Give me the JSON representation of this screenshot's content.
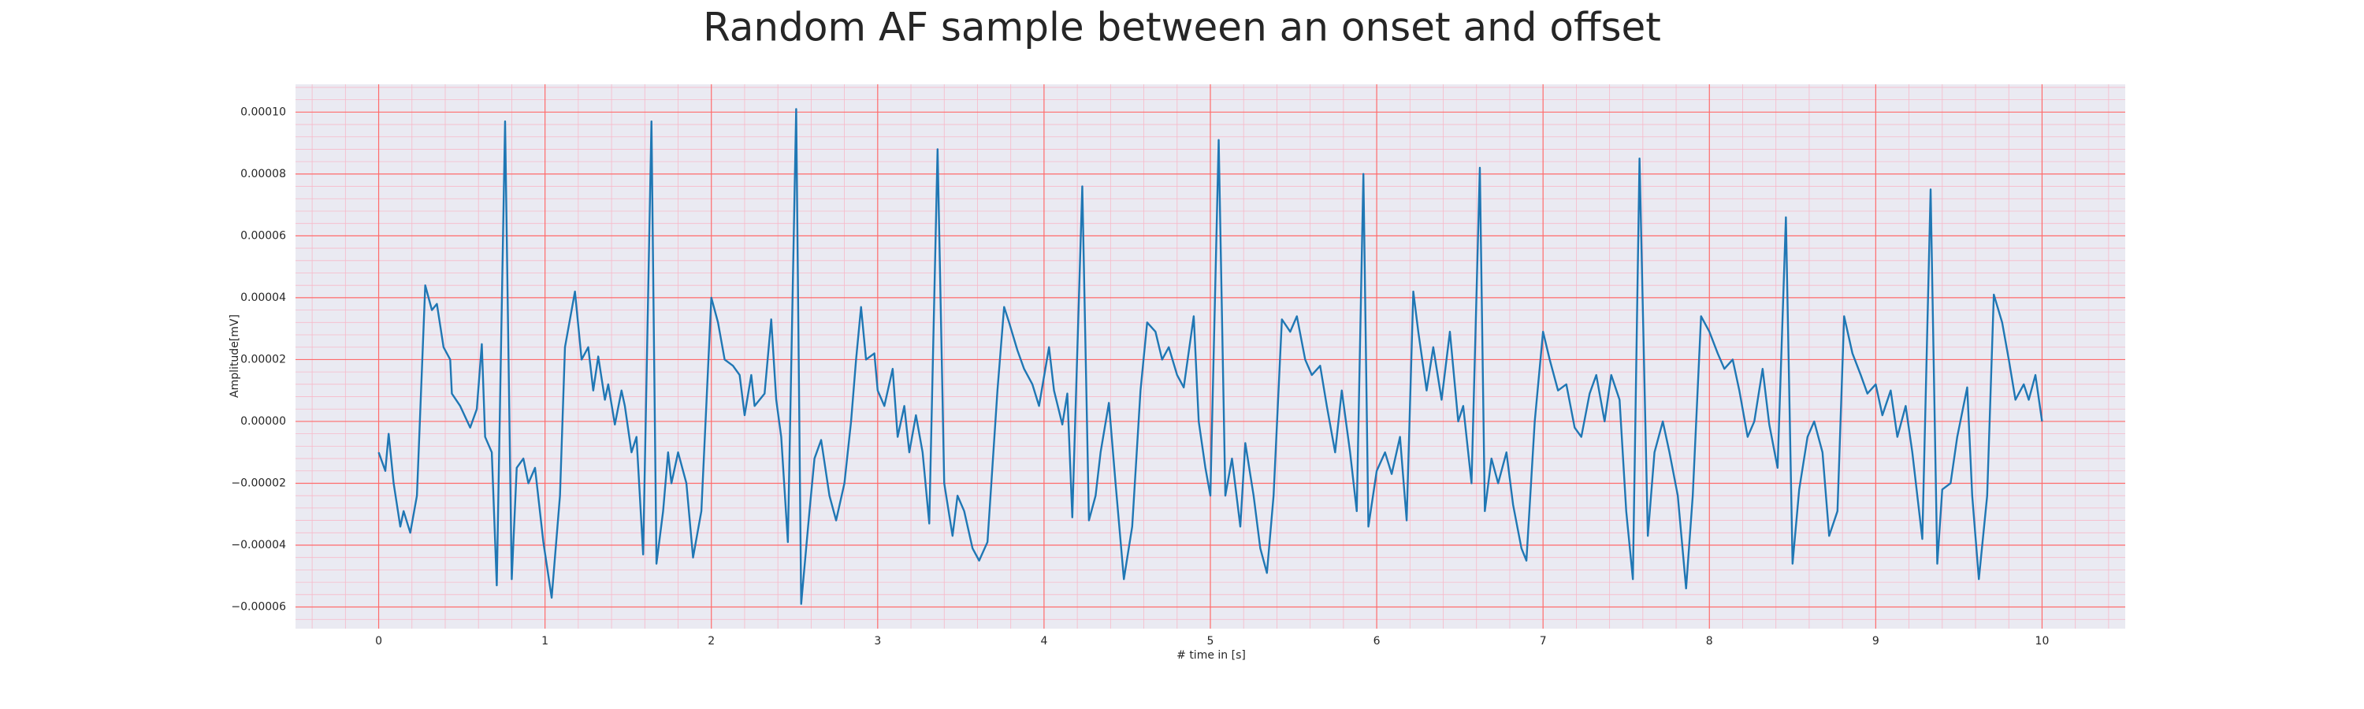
{
  "chart_data": {
    "type": "line",
    "title": "Random AF sample between an onset and offset",
    "x_label": "# time in [s]",
    "y_label": "Amplitude[mV]",
    "color": "#1f77b4",
    "background": "#eaeaf2",
    "grid": true,
    "grid_color": "#ff6b6b",
    "minor_grid_color": "#f7b9c9",
    "xlim": [
      -0.5,
      10.5
    ],
    "ylim": [
      -6.7e-05,
      0.000109
    ],
    "xticks": [
      0,
      1,
      2,
      3,
      4,
      5,
      6,
      7,
      8,
      9,
      10
    ],
    "yticks": [
      {
        "value": -6e-05,
        "label": "−0.00006"
      },
      {
        "value": -4e-05,
        "label": "−0.00004"
      },
      {
        "value": -2e-05,
        "label": "−0.00002"
      },
      {
        "value": 0,
        "label": "0.00000"
      },
      {
        "value": 2e-05,
        "label": "0.00002"
      },
      {
        "value": 4e-05,
        "label": "0.00004"
      },
      {
        "value": 6e-05,
        "label": "0.00006"
      },
      {
        "value": 8e-05,
        "label": "0.00008"
      },
      {
        "value": 0.0001,
        "label": "0.00010"
      }
    ],
    "x": [
      0,
      0.04,
      0.06,
      0.09,
      0.13,
      0.15,
      0.19,
      0.23,
      0.28,
      0.32,
      0.35,
      0.39,
      0.43,
      0.44,
      0.49,
      0.55,
      0.59,
      0.62,
      0.64,
      0.68,
      0.71,
      0.76,
      0.8,
      0.83,
      0.87,
      0.9,
      0.94,
      0.99,
      1.04,
      1.09,
      1.12,
      1.18,
      1.22,
      1.26,
      1.29,
      1.32,
      1.36,
      1.38,
      1.42,
      1.46,
      1.48,
      1.52,
      1.55,
      1.59,
      1.64,
      1.67,
      1.71,
      1.74,
      1.76,
      1.8,
      1.85,
      1.89,
      1.94,
      2.0,
      2.04,
      2.08,
      2.13,
      2.17,
      2.2,
      2.24,
      2.26,
      2.32,
      2.36,
      2.39,
      2.42,
      2.46,
      2.51,
      2.54,
      2.59,
      2.62,
      2.66,
      2.71,
      2.75,
      2.8,
      2.84,
      2.87,
      2.9,
      2.93,
      2.98,
      3.0,
      3.04,
      3.09,
      3.12,
      3.16,
      3.19,
      3.23,
      3.27,
      3.31,
      3.36,
      3.4,
      3.45,
      3.48,
      3.52,
      3.57,
      3.61,
      3.66,
      3.72,
      3.76,
      3.79,
      3.84,
      3.88,
      3.93,
      3.97,
      4.03,
      4.06,
      4.11,
      4.14,
      4.17,
      4.23,
      4.27,
      4.31,
      4.34,
      4.39,
      4.43,
      4.48,
      4.53,
      4.58,
      4.62,
      4.67,
      4.71,
      4.75,
      4.8,
      4.84,
      4.9,
      4.93,
      4.97,
      5.0,
      5.05,
      5.09,
      5.13,
      5.18,
      5.21,
      5.26,
      5.3,
      5.34,
      5.38,
      5.43,
      5.48,
      5.52,
      5.57,
      5.61,
      5.66,
      5.7,
      5.75,
      5.79,
      5.84,
      5.88,
      5.92,
      5.95,
      6.0,
      6.05,
      6.09,
      6.14,
      6.18,
      6.22,
      6.25,
      6.3,
      6.34,
      6.39,
      6.44,
      6.49,
      6.52,
      6.57,
      6.62,
      6.65,
      6.69,
      6.73,
      6.78,
      6.82,
      6.87,
      6.9,
      6.95,
      7.0,
      7.04,
      7.09,
      7.14,
      7.19,
      7.23,
      7.28,
      7.32,
      7.37,
      7.41,
      7.46,
      7.5,
      7.54,
      7.58,
      7.63,
      7.67,
      7.72,
      7.76,
      7.81,
      7.86,
      7.9,
      7.95,
      8.0,
      8.05,
      8.09,
      8.14,
      8.18,
      8.23,
      8.27,
      8.32,
      8.36,
      8.41,
      8.46,
      8.5,
      8.54,
      8.59,
      8.63,
      8.68,
      8.72,
      8.77,
      8.81,
      8.86,
      8.91,
      8.95,
      9.0,
      9.04,
      9.09,
      9.13,
      9.18,
      9.22,
      9.28,
      9.33,
      9.37,
      9.4,
      9.45,
      9.49,
      9.55,
      9.58,
      9.62,
      9.67,
      9.71,
      9.76,
      9.8,
      9.84,
      9.89,
      9.92,
      9.96,
      10
    ],
    "values": [
      -1e-05,
      -1.6e-05,
      -4e-06,
      -2e-05,
      -3.4e-05,
      -2.9e-05,
      -3.6e-05,
      -2.4e-05,
      4.4e-05,
      3.6e-05,
      3.8e-05,
      2.4e-05,
      2e-05,
      9e-06,
      5e-06,
      -2e-06,
      4e-06,
      2.5e-05,
      -5e-06,
      -1e-05,
      -5.3e-05,
      9.7e-05,
      -5.1e-05,
      -1.5e-05,
      -1.2e-05,
      -2e-05,
      -1.5e-05,
      -3.9e-05,
      -5.7e-05,
      -2.4e-05,
      2.4e-05,
      4.2e-05,
      2e-05,
      2.4e-05,
      1e-05,
      2.1e-05,
      7e-06,
      1.2e-05,
      -1e-06,
      1e-05,
      5e-06,
      -1e-05,
      -5e-06,
      -4.3e-05,
      9.7e-05,
      -4.6e-05,
      -2.9e-05,
      -1e-05,
      -2e-05,
      -1e-05,
      -2e-05,
      -4.4e-05,
      -2.9e-05,
      4e-05,
      3.2e-05,
      2e-05,
      1.8e-05,
      1.5e-05,
      2e-06,
      1.5e-05,
      5e-06,
      9e-06,
      3.3e-05,
      7e-06,
      -5e-06,
      -3.9e-05,
      0.000101,
      -5.9e-05,
      -2.9e-05,
      -1.2e-05,
      -6e-06,
      -2.4e-05,
      -3.2e-05,
      -2e-05,
      0,
      2e-05,
      3.7e-05,
      2e-05,
      2.2e-05,
      1e-05,
      5e-06,
      1.7e-05,
      -5e-06,
      5e-06,
      -1e-05,
      2e-06,
      -1e-05,
      -3.3e-05,
      8.8e-05,
      -2e-05,
      -3.7e-05,
      -2.4e-05,
      -2.9e-05,
      -4.1e-05,
      -4.5e-05,
      -3.9e-05,
      1e-05,
      3.7e-05,
      3.2e-05,
      2.3e-05,
      1.7e-05,
      1.2e-05,
      5e-06,
      2.4e-05,
      1e-05,
      -1e-06,
      9e-06,
      -3.1e-05,
      7.6e-05,
      -3.2e-05,
      -2.4e-05,
      -1e-05,
      6e-06,
      -2e-05,
      -5.1e-05,
      -3.4e-05,
      1e-05,
      3.2e-05,
      2.9e-05,
      2e-05,
      2.4e-05,
      1.5e-05,
      1.1e-05,
      3.4e-05,
      0,
      -1.5e-05,
      -2.4e-05,
      9.1e-05,
      -2.4e-05,
      -1.2e-05,
      -3.4e-05,
      -7e-06,
      -2.4e-05,
      -4.1e-05,
      -4.9e-05,
      -2.4e-05,
      3.3e-05,
      2.9e-05,
      3.4e-05,
      2e-05,
      1.5e-05,
      1.8e-05,
      5e-06,
      -1e-05,
      1e-05,
      -1e-05,
      -2.9e-05,
      8e-05,
      -3.4e-05,
      -1.6e-05,
      -1e-05,
      -1.7e-05,
      -5e-06,
      -3.2e-05,
      4.2e-05,
      2.9e-05,
      1e-05,
      2.4e-05,
      7e-06,
      2.9e-05,
      0,
      5e-06,
      -2e-05,
      8.2e-05,
      -2.9e-05,
      -1.2e-05,
      -2e-05,
      -1e-05,
      -2.7e-05,
      -4.1e-05,
      -4.5e-05,
      0,
      2.9e-05,
      2e-05,
      1e-05,
      1.2e-05,
      -2e-06,
      -5e-06,
      9e-06,
      1.5e-05,
      0,
      1.5e-05,
      7e-06,
      -2.9e-05,
      -5.1e-05,
      8.5e-05,
      -3.7e-05,
      -1e-05,
      0,
      -1e-05,
      -2.4e-05,
      -5.4e-05,
      -2.4e-05,
      3.4e-05,
      2.9e-05,
      2.2e-05,
      1.7e-05,
      2e-05,
      1e-05,
      -5e-06,
      0,
      1.7e-05,
      -1e-06,
      -1.5e-05,
      6.6e-05,
      -4.6e-05,
      -2.2e-05,
      -5e-06,
      0,
      -1e-05,
      -3.7e-05,
      -2.9e-05,
      3.4e-05,
      2.2e-05,
      1.5e-05,
      9e-06,
      1.2e-05,
      2e-06,
      1e-05,
      -5e-06,
      5e-06,
      -1e-05,
      -3.8e-05,
      7.5e-05,
      -4.6e-05,
      -2.2e-05,
      -2e-05,
      -5e-06,
      1.1e-05,
      -2.4e-05,
      -5.1e-05,
      -2.4e-05,
      4.1e-05,
      3.2e-05,
      2e-05,
      7e-06,
      1.2e-05,
      7e-06,
      1.5e-05,
      0
    ]
  }
}
